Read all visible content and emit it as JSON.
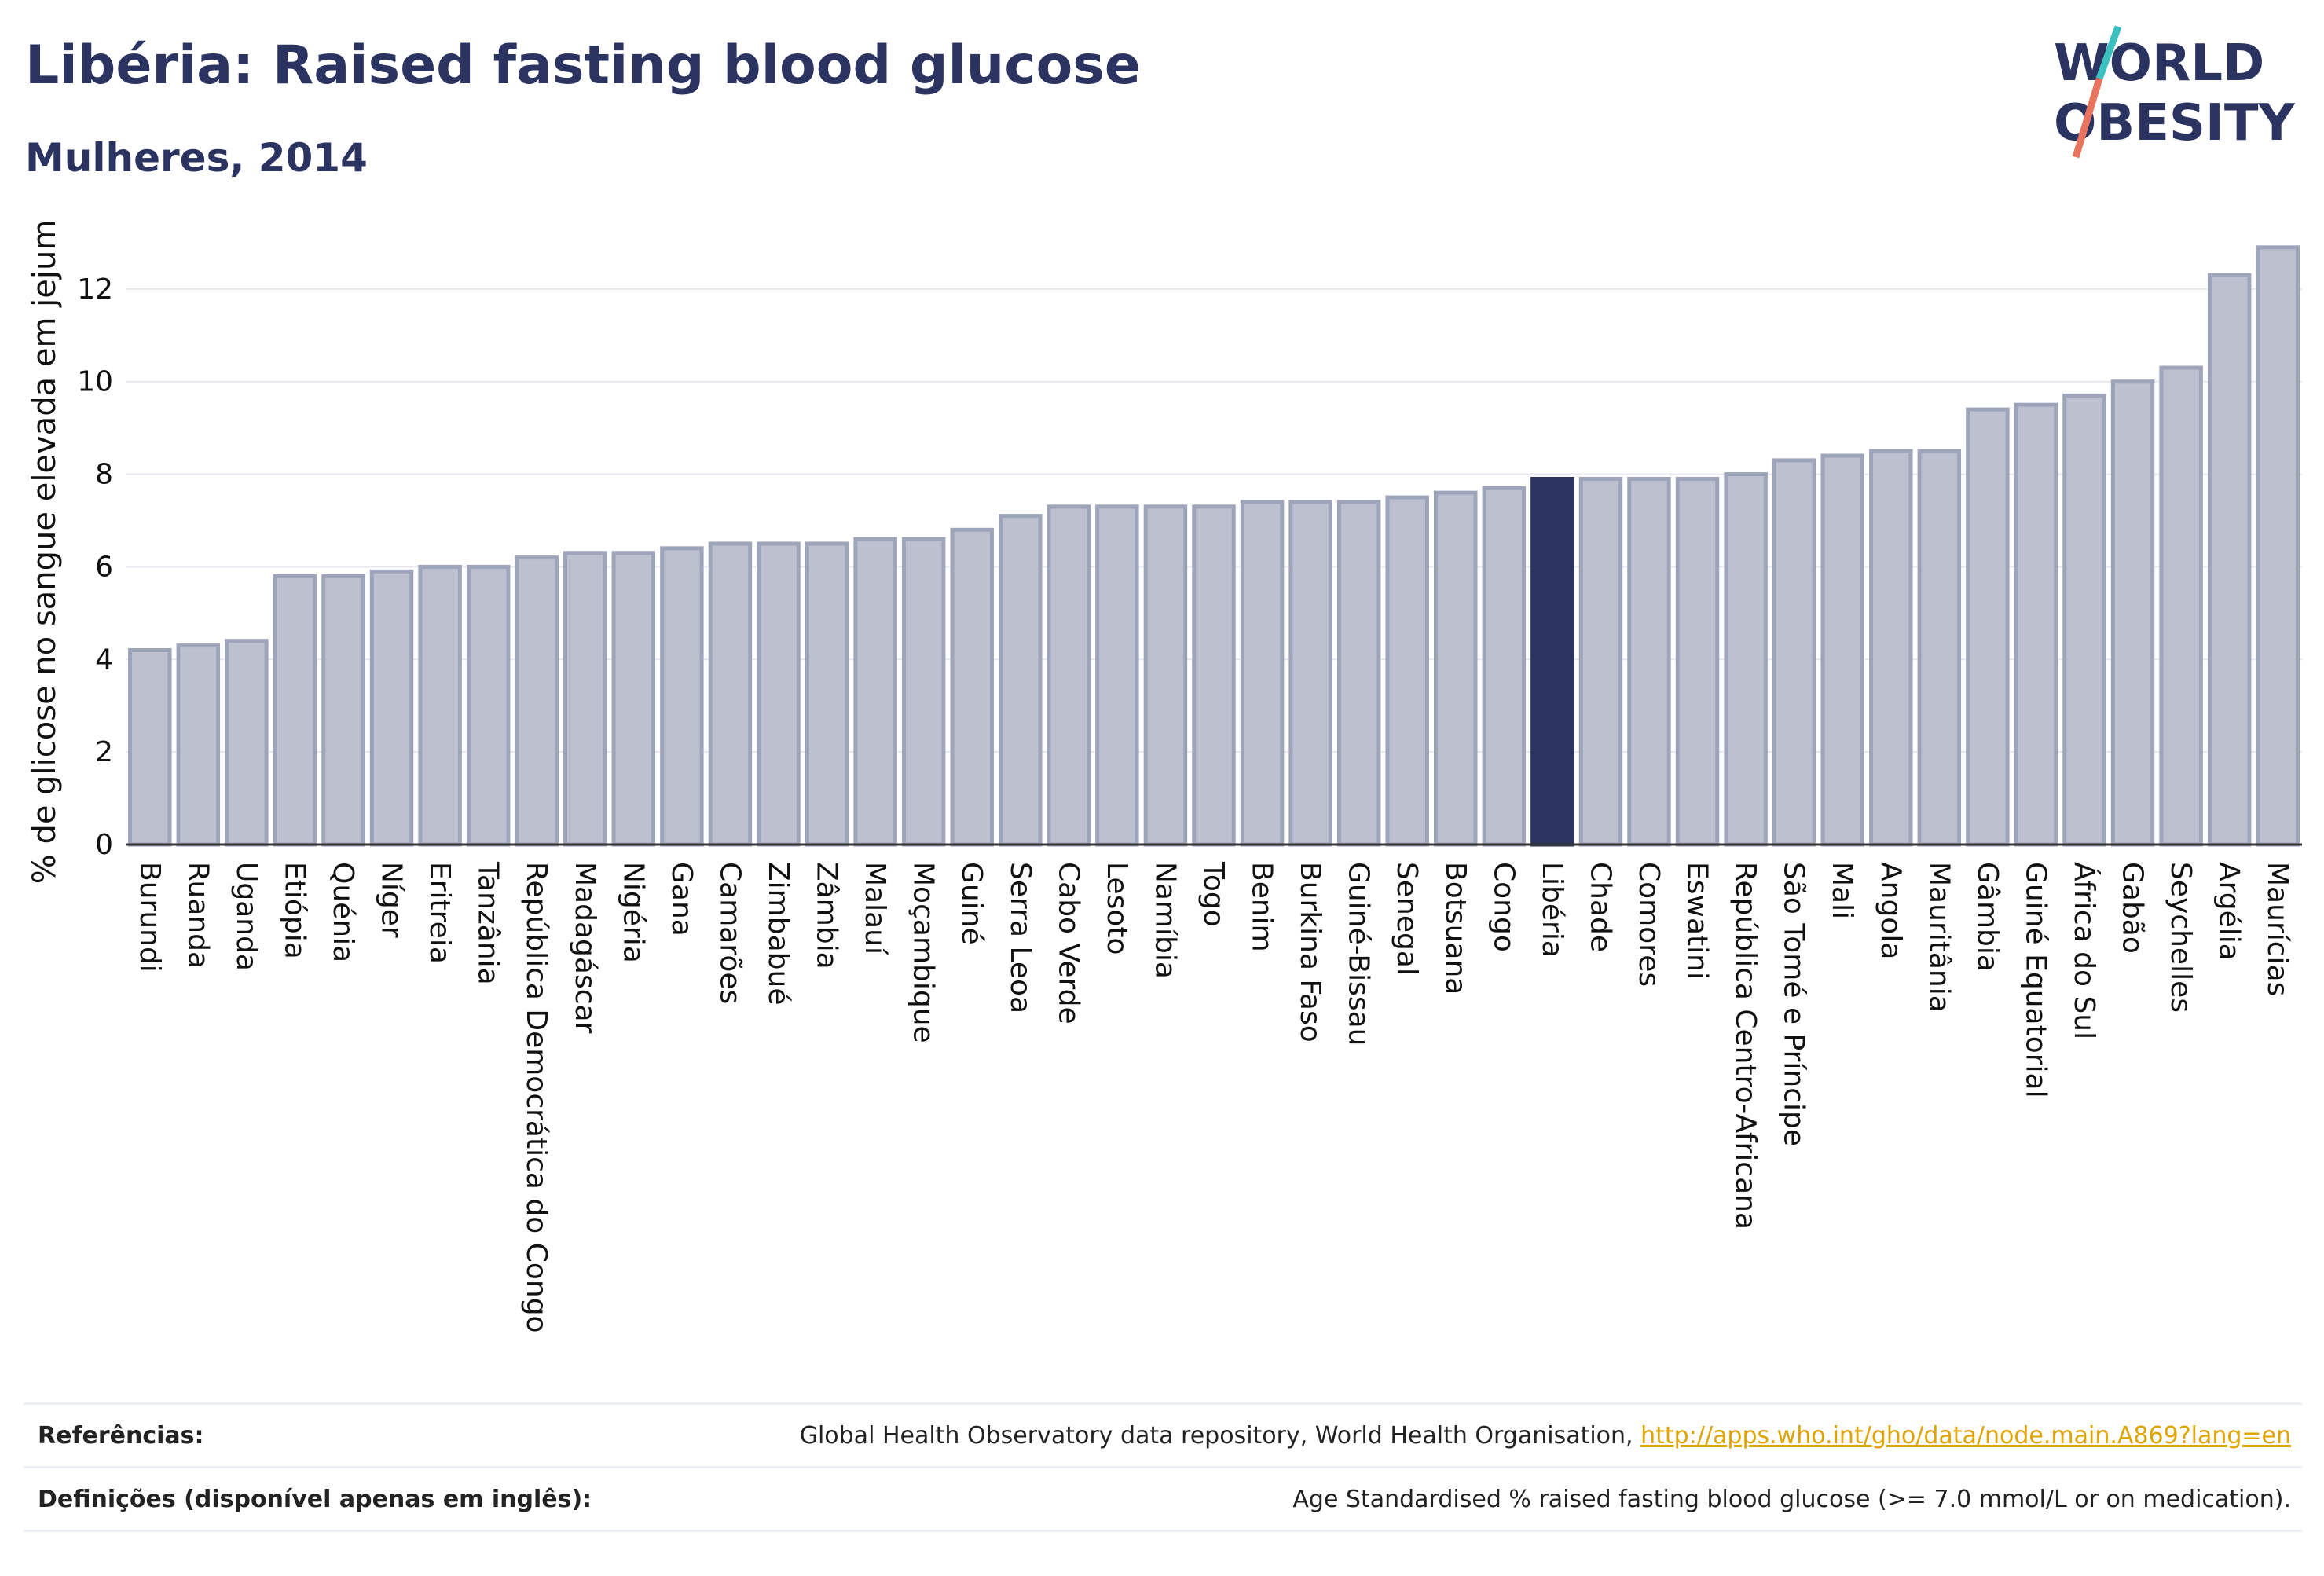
{
  "header": {
    "title": "Libéria: Raised fasting blood glucose",
    "subtitle": "Mulheres, 2014"
  },
  "logo": {
    "line1": "WORLD",
    "line2": "OBESITY",
    "text_color": "#2b3360",
    "slash_top_color": "#3bbfbf",
    "slash_bottom_color": "#e8735f"
  },
  "chart_data": {
    "type": "bar",
    "ylabel": "% de glicose no sangue elevada em jejum",
    "ylim": [
      0,
      14
    ],
    "yticks": [
      0,
      2,
      4,
      6,
      8,
      10,
      12
    ],
    "grid": true,
    "highlight": "Libéria",
    "bar_color": "#bcc0cf",
    "bar_edge_color": "#9ea4ba",
    "highlight_color": "#2b3360",
    "categories": [
      "Burundi",
      "Ruanda",
      "Uganda",
      "Etiópia",
      "Quénia",
      "Níger",
      "Eritreia",
      "Tanzânia",
      "República Democrática do Congo",
      "Madagáscar",
      "Nigéria",
      "Gana",
      "Camarões",
      "Zimbabué",
      "Zâmbia",
      "Malauí",
      "Moçambique",
      "Guiné",
      "Serra Leoa",
      "Cabo Verde",
      "Lesoto",
      "Namíbia",
      "Togo",
      "Benim",
      "Burkina Faso",
      "Guiné-Bissau",
      "Senegal",
      "Botsuana",
      "Congo",
      "Libéria",
      "Chade",
      "Comores",
      "Eswatini",
      "República Centro-Africana",
      "São Tomé e Príncipe",
      "Mali",
      "Angola",
      "Mauritânia",
      "Gâmbia",
      "Guiné Equatorial",
      "África do Sul",
      "Gabão",
      "Seychelles",
      "Argélia",
      "Maurícias"
    ],
    "values": [
      4.2,
      4.3,
      4.4,
      5.8,
      5.8,
      5.9,
      6.0,
      6.0,
      6.2,
      6.3,
      6.3,
      6.4,
      6.5,
      6.5,
      6.5,
      6.6,
      6.6,
      6.8,
      7.1,
      7.3,
      7.3,
      7.3,
      7.3,
      7.4,
      7.4,
      7.4,
      7.5,
      7.6,
      7.7,
      7.9,
      7.9,
      7.9,
      7.9,
      8.0,
      8.3,
      8.4,
      8.5,
      8.5,
      9.4,
      9.5,
      9.7,
      10.0,
      10.3,
      12.3,
      12.9
    ]
  },
  "footer": {
    "references_label": "Referências:",
    "references_text": "Global Health Observatory data repository, World Health Organisation,",
    "references_link": "http://apps.who.int/gho/data/node.main.A869?lang=en",
    "definitions_label": "Definições (disponível apenas em inglês):",
    "definitions_text": "Age Standardised % raised fasting blood glucose (>= 7.0 mmol/L or on medication)."
  }
}
